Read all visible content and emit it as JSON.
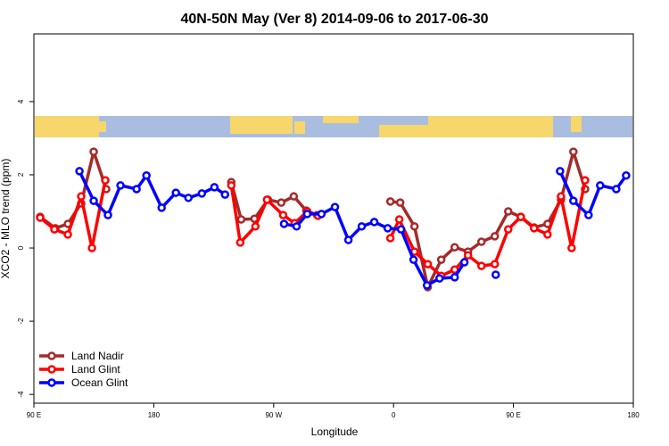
{
  "chart_data": {
    "type": "line",
    "title": "40N-50N May (Ver 8)   2014-09-06 to 2017-06-30",
    "xlabel": "Longitude",
    "ylabel": "XCO2 - MLO trend (ppm)",
    "xlim": [
      90,
      540
    ],
    "ylim": [
      -4.24,
      5.85
    ],
    "xticks": [
      {
        "value": 90,
        "label": "90 E"
      },
      {
        "value": 180,
        "label": "180"
      },
      {
        "value": 270,
        "label": "90 W"
      },
      {
        "value": 360,
        "label": "0"
      },
      {
        "value": 450,
        "label": "90 E"
      },
      {
        "value": 540,
        "label": "180"
      }
    ],
    "yticks": [
      -4,
      -2,
      0,
      2,
      4
    ],
    "legend": "bottomleft",
    "series": [
      {
        "name": "Land Nadir",
        "color": "#a52a2a",
        "x": [
          94.7,
          106.1,
          115.5,
          125.5,
          134.9,
          144.3,
          null,
          238.2,
          245.6,
          255.6,
          265.7,
          275.7,
          285.1,
          294.5,
          302.6,
          null,
          357.6,
          365,
          375.7,
          385.7,
          395.8,
          405.9,
          415.9,
          426,
          436,
          446.1,
          455.5,
          465.5,
          475.6,
          485.7,
          495,
          503.8
        ],
        "values": [
          0.85,
          0.54,
          0.66,
          1.22,
          2.63,
          1.61,
          null,
          1.8,
          0.78,
          0.8,
          1.32,
          1.24,
          1.41,
          1.02,
          0.9,
          null,
          1.27,
          1.24,
          0.59,
          -1.07,
          -0.32,
          0.02,
          -0.1,
          0.17,
          0.32,
          1.0,
          0.85,
          0.56,
          0.66,
          1.32,
          2.63,
          1.61
        ]
      },
      {
        "name": "Land Glint",
        "color": "#ff0000",
        "x": [
          94.7,
          105.4,
          115.5,
          125.5,
          133.6,
          143.6,
          null,
          238.2,
          244.9,
          256.3,
          265,
          277.1,
          285.8,
          295.2,
          303.3,
          null,
          357.6,
          364.3,
          375.7,
          385.7,
          395.8,
          405.9,
          415.9,
          426,
          436,
          446.1,
          455.5,
          465.5,
          475.6,
          485.7,
          493.7,
          503.8
        ],
        "values": [
          0.83,
          0.51,
          0.37,
          1.41,
          0,
          1.85,
          null,
          1.71,
          0.15,
          0.59,
          1.32,
          0.9,
          0.68,
          1.0,
          0.88,
          null,
          0.27,
          0.78,
          -0.1,
          -0.44,
          -0.76,
          -0.59,
          -0.2,
          -0.49,
          -0.44,
          0.51,
          0.85,
          0.54,
          0.37,
          1.41,
          0,
          1.85
        ]
      },
      {
        "name": "Ocean Glint",
        "color": "#0000ff",
        "x": [
          124.2,
          134.9,
          145.6,
          155,
          167.1,
          174.5,
          185.9,
          196.6,
          206,
          216.1,
          225.5,
          233.5,
          null,
          277.8,
          287.2,
          295.2,
          305.9,
          316,
          326.1,
          336.1,
          345.5,
          355.6,
          365.6,
          375,
          385.1,
          394.5,
          405.9,
          413.2,
          null,
          436.7,
          null,
          485,
          495,
          506.4,
          515.1,
          527.2,
          534.6
        ],
        "values": [
          2.1,
          1.29,
          0.9,
          1.71,
          1.61,
          1.98,
          1.1,
          1.51,
          1.37,
          1.49,
          1.66,
          1.46,
          null,
          0.66,
          0.59,
          0.93,
          0.93,
          1.12,
          0.22,
          0.59,
          0.71,
          0.54,
          0.51,
          -0.32,
          -1.02,
          -0.83,
          -0.8,
          -0.39,
          null,
          -0.73,
          null,
          2.1,
          1.29,
          0.9,
          1.71,
          1.61,
          1.98
        ]
      }
    ]
  }
}
